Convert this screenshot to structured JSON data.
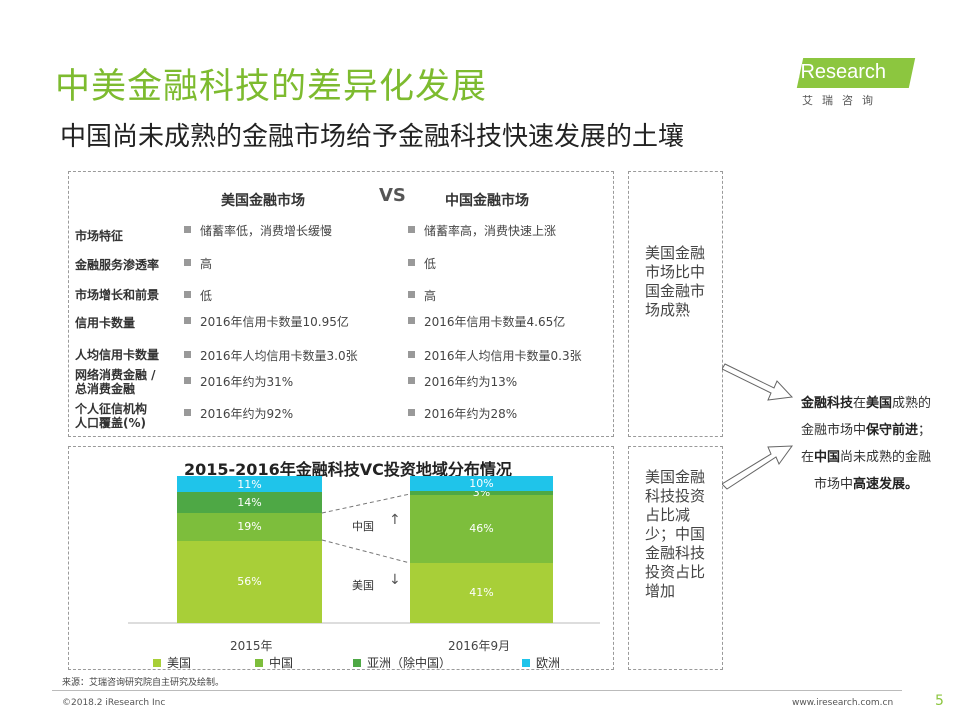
{
  "header": {
    "title": "中美金融科技的差异化发展",
    "subtitle": "中国尚未成熟的金融市场给予金融科技快速发展的土壤",
    "logo_text": "Research",
    "logo_cn": "艾瑞咨询"
  },
  "comparison": {
    "col_us": "美国金融市场",
    "vs": "VS",
    "col_cn": "中国金融市场",
    "rows": [
      {
        "label": "市场特征",
        "us": "储蓄率低，消费增长缓慢",
        "cn": "储蓄率高，消费快速上涨"
      },
      {
        "label": "金融服务渗透率",
        "us": "高",
        "cn": "低"
      },
      {
        "label": "市场增长和前景",
        "us": "低",
        "cn": "高"
      },
      {
        "label": "信用卡数量",
        "us": "2016年信用卡数量10.95亿",
        "cn": "2016年信用卡数量4.65亿"
      },
      {
        "label": "人均信用卡数量",
        "us": "2016年人均信用卡数量3.0张",
        "cn": "2016年人均信用卡数量0.3张"
      },
      {
        "label": "网络消费金融／总消费金融",
        "label_line1": "网络消费金融 /",
        "label_line2": "总消费金融",
        "us": "2016年约为31%",
        "cn": "2016年约为13%"
      },
      {
        "label": "个人征信机构人口覆盖(%)",
        "label_line1": "个人征信机构",
        "label_line2": "人口覆盖(%)",
        "us": "2016年约为92%",
        "cn": "2016年约为28%"
      }
    ]
  },
  "side": {
    "top_text": "美国金融市场比中国金融市场成熟",
    "bottom_text": "美国金融科技投资占比减少；中国金融科技投资占比增加"
  },
  "conclusion": {
    "line1_b1": "金融科技",
    "line1_t1": "在",
    "line1_b2": "美国",
    "line1_t2": "成熟的",
    "line2_t1": "金融市场中",
    "line2_b1": "保守前进",
    "line2_t2": "；",
    "line3_t1": "在",
    "line3_b1": "中国",
    "line3_t2": "尚未成熟的金融",
    "line4_t1": "市场中",
    "line4_b1": "高速发展。"
  },
  "chart_data": {
    "type": "bar",
    "stacked": true,
    "percent": true,
    "title": "2015-2016年金融科技VC投资地域分布情况",
    "categories": [
      "2015年",
      "2016年9月"
    ],
    "series": [
      {
        "name": "美国",
        "values": [
          56,
          41
        ],
        "labels": [
          "56%",
          "41%"
        ],
        "color": "#a8cf38"
      },
      {
        "name": "中国",
        "values": [
          19,
          46
        ],
        "labels": [
          "19%",
          "46%"
        ],
        "color": "#7dbe3c"
      },
      {
        "name": "亚洲（除中国）",
        "values": [
          14,
          3
        ],
        "labels": [
          "14%",
          "3%"
        ],
        "color": "#4ea845"
      },
      {
        "name": "欧洲",
        "values": [
          11,
          10
        ],
        "labels": [
          "11%",
          "10%"
        ],
        "color": "#1fc4ea"
      }
    ],
    "annotations": [
      {
        "text": "中国",
        "arrow": "up"
      },
      {
        "text": "美国",
        "arrow": "down"
      }
    ],
    "ylim": [
      0,
      100
    ],
    "legend_position": "bottom"
  },
  "footer": {
    "source": "来源：艾瑞咨询研究院自主研究及绘制。",
    "copyright": "©2018.2 iResearch Inc",
    "website": "www.iresearch.com.cn",
    "page": "5"
  },
  "colors": {
    "accent": "#7dbb2f",
    "cyan": "#1fc4ea"
  }
}
